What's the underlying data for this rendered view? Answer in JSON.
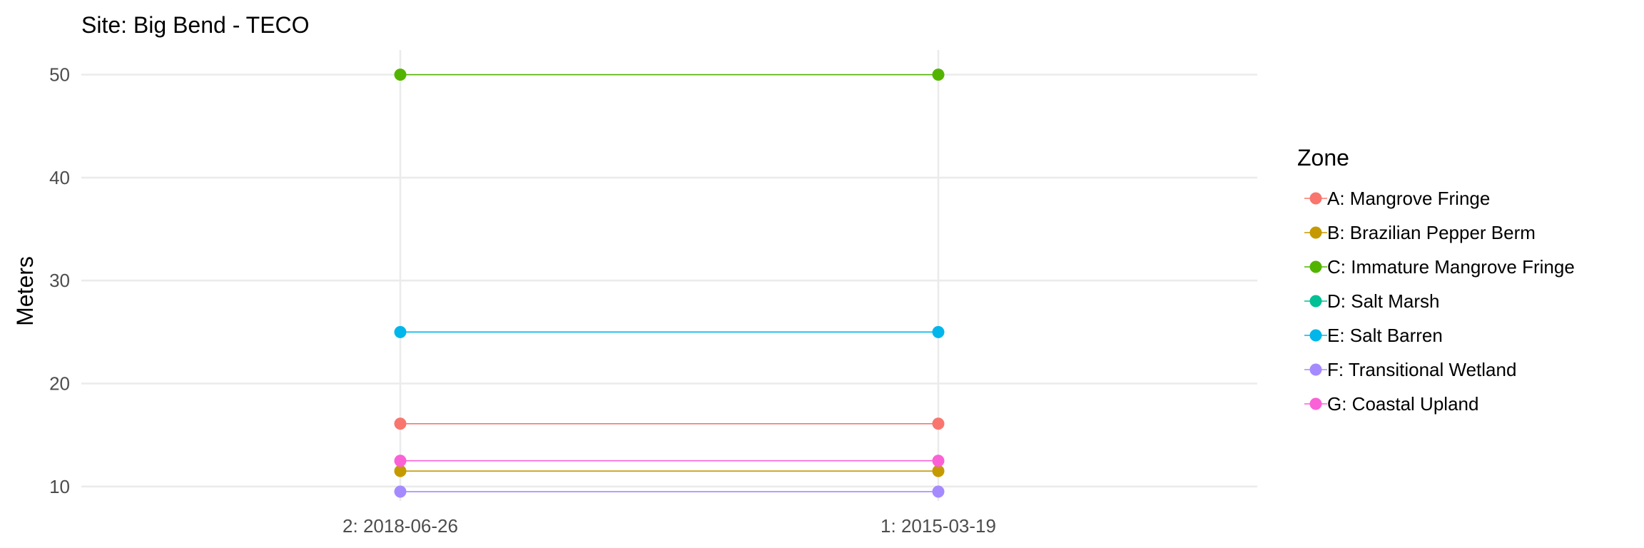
{
  "chart_data": {
    "type": "line",
    "title": "Site: Big Bend - TECO",
    "xlabel": "",
    "ylabel": "Meters",
    "categories": [
      "2: 2018-06-26",
      "1: 2015-03-19"
    ],
    "ylim": [
      8.6,
      52.4
    ],
    "yticks": [
      10,
      20,
      30,
      40,
      50
    ],
    "grid": true,
    "legend": {
      "title": "Zone",
      "position": "right"
    },
    "series": [
      {
        "name": "A: Mangrove Fringe",
        "color": "#F8766D",
        "values": [
          16.1,
          16.1
        ]
      },
      {
        "name": "B: Brazilian Pepper Berm",
        "color": "#C49A00",
        "values": [
          11.5,
          11.5
        ]
      },
      {
        "name": "C: Immature Mangrove Fringe",
        "color": "#53B400",
        "values": [
          50,
          50
        ]
      },
      {
        "name": "D: Salt Marsh",
        "color": "#00C094",
        "values": [
          null,
          null
        ]
      },
      {
        "name": "E: Salt Barren",
        "color": "#00B6EB",
        "values": [
          25,
          25
        ]
      },
      {
        "name": "F: Transitional Wetland",
        "color": "#A58AFF",
        "values": [
          9.5,
          9.5
        ]
      },
      {
        "name": "G: Coastal Upland",
        "color": "#FB61D7",
        "values": [
          12.5,
          12.5
        ]
      }
    ]
  }
}
